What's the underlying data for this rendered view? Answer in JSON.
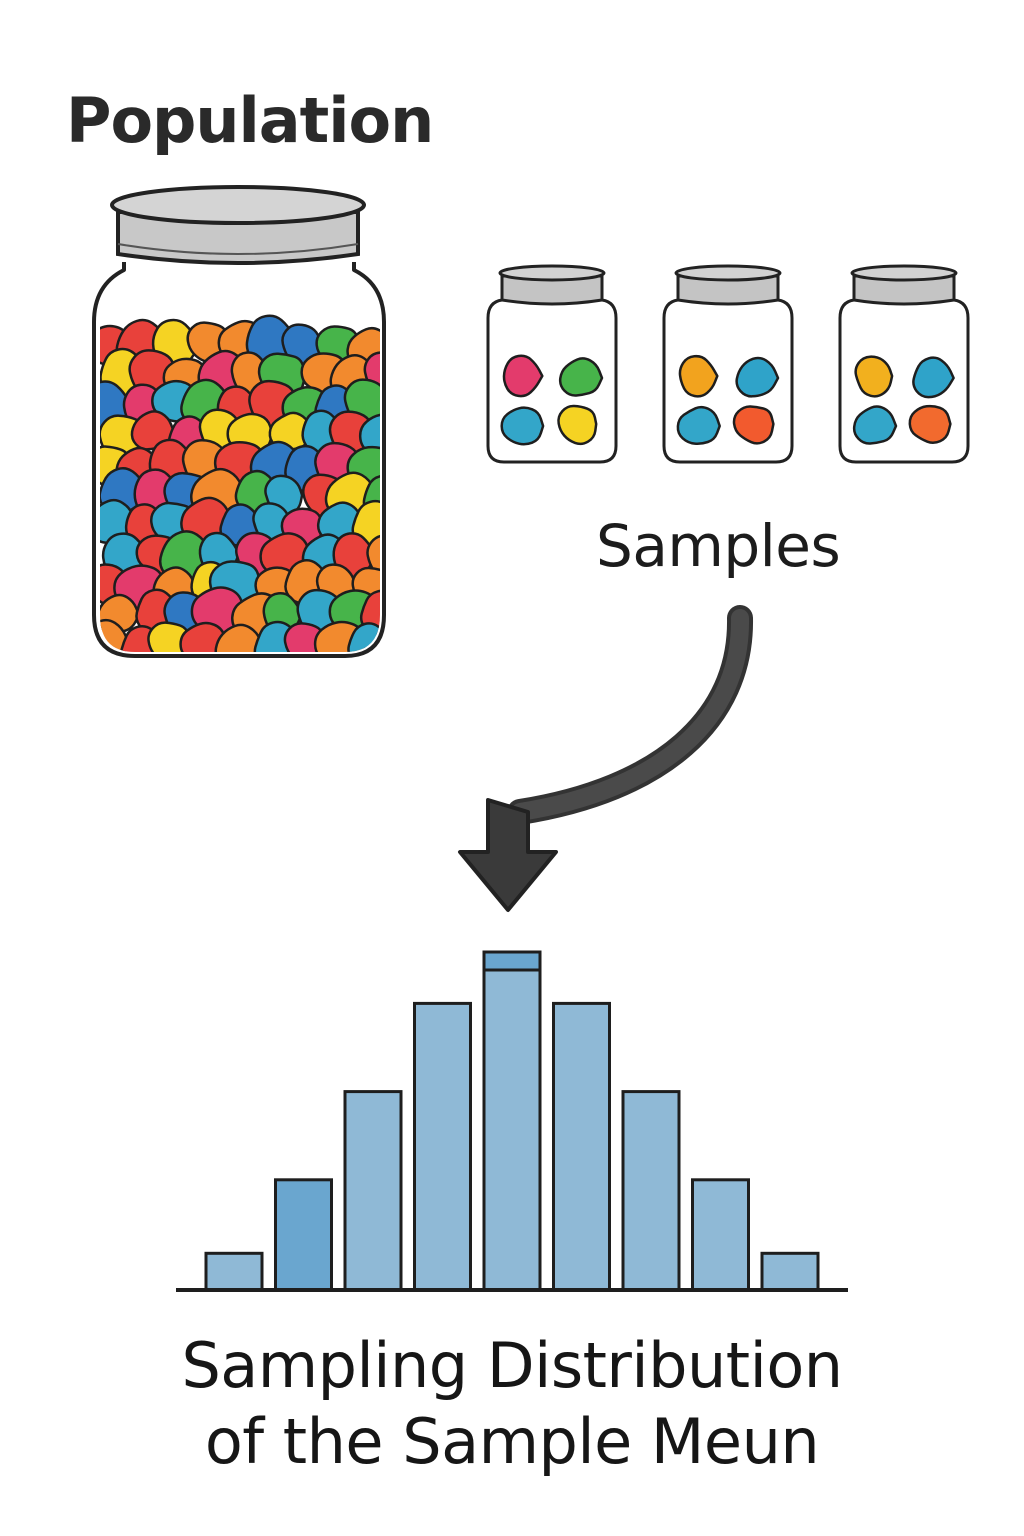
{
  "population_label": "Population",
  "samples_label": "Samples",
  "caption": {
    "line1": "Sampling Distribution",
    "line2": "of the Sample Meun"
  },
  "colors": {
    "candy": [
      "#e8413b",
      "#f5d323",
      "#33a6c9",
      "#f28a2e",
      "#47b44a",
      "#e33b6c",
      "#2f78c2"
    ],
    "jar_lid": "#bdbdbd",
    "outline": "#222222",
    "bar_fill": "#8fb9d6",
    "bar_fill_dark": "#6aa6cf",
    "arrow": "#3a3a3a"
  },
  "samples": [
    {
      "candies": [
        "#e33b6c",
        "#47b44a",
        "#33a6c9",
        "#f5d323"
      ]
    },
    {
      "candies": [
        "#f2a31e",
        "#2fa3c9",
        "#33a6c9",
        "#f25a2e"
      ]
    },
    {
      "candies": [
        "#f2b01e",
        "#2fa3c9",
        "#33a6c9",
        "#f26a2e"
      ]
    }
  ],
  "chart_data": {
    "type": "bar",
    "title": "Sampling Distribution of the Sample Meun",
    "values": [
      1,
      3,
      5.4,
      7.8,
      9.2,
      7.8,
      5.4,
      3,
      1
    ]
  }
}
